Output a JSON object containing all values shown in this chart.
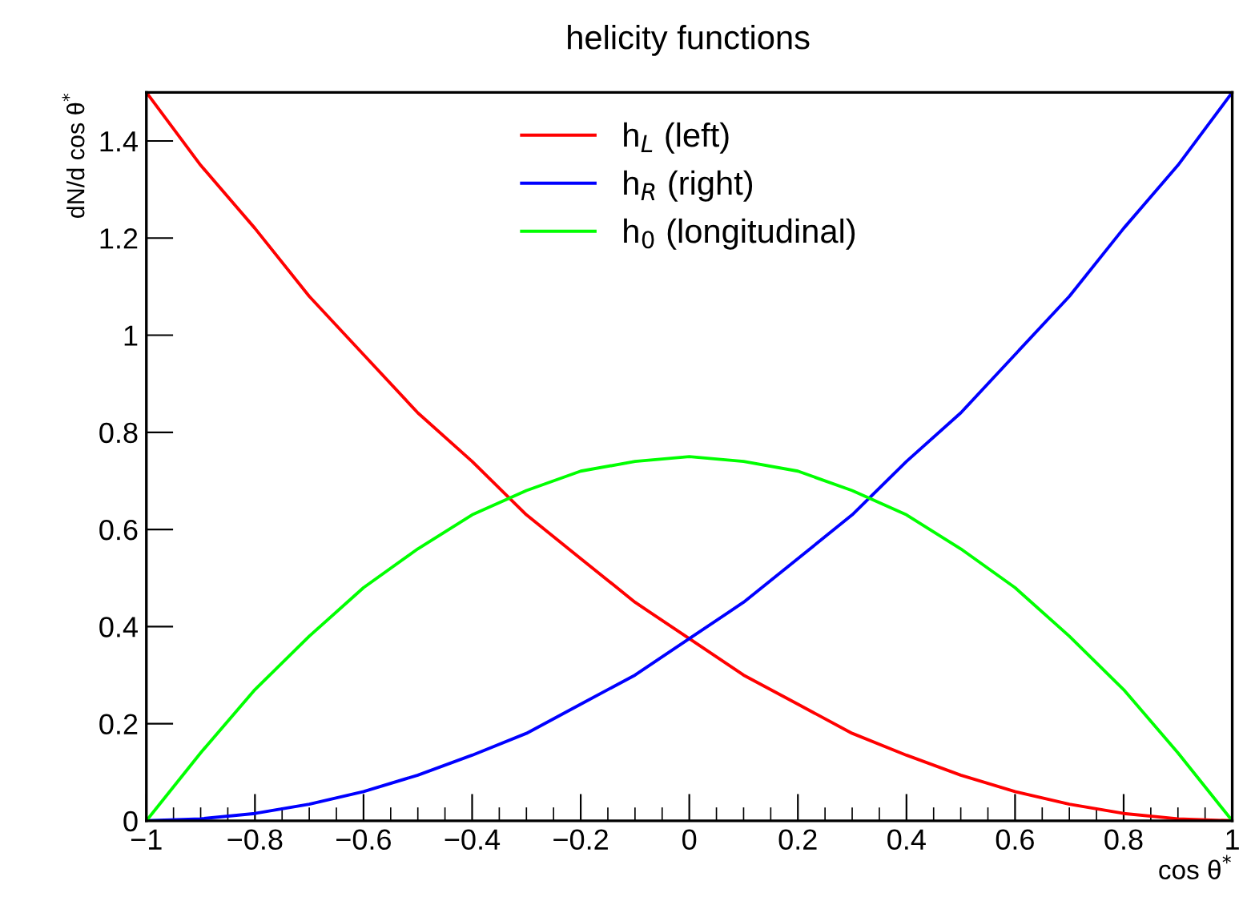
{
  "chart_data": {
    "type": "line",
    "title": "helicity functions",
    "xlabel": "cos θ$^{*}$",
    "ylabel": "dN/d cos θ$^{*}$",
    "x": [
      -1,
      -0.9,
      -0.8,
      -0.7,
      -0.6,
      -0.5,
      -0.4,
      -0.3,
      -0.2,
      -0.1,
      0,
      0.1,
      0.2,
      0.3,
      0.4,
      0.5,
      0.6,
      0.7,
      0.8,
      0.9,
      1
    ],
    "series": [
      {
        "name": "h$_{L}$ (left)",
        "color": "#ff0000",
        "values": [
          1.5,
          1.35,
          1.22,
          1.08,
          0.96,
          0.84,
          0.74,
          0.63,
          0.54,
          0.45,
          0.375,
          0.3,
          0.24,
          0.18,
          0.135,
          0.094,
          0.06,
          0.034,
          0.015,
          0.004,
          0
        ]
      },
      {
        "name": "h$_{R}$ (right)",
        "color": "#0000ff",
        "values": [
          0,
          0.004,
          0.015,
          0.034,
          0.06,
          0.094,
          0.135,
          0.18,
          0.24,
          0.3,
          0.375,
          0.45,
          0.54,
          0.63,
          0.74,
          0.84,
          0.96,
          1.08,
          1.22,
          1.35,
          1.5
        ]
      },
      {
        "name": "h$_{0}$ (longitudinal)",
        "color": "#00ff00",
        "values": [
          0,
          0.14,
          0.27,
          0.38,
          0.48,
          0.56,
          0.63,
          0.68,
          0.72,
          0.74,
          0.75,
          0.74,
          0.72,
          0.68,
          0.63,
          0.56,
          0.48,
          0.38,
          0.27,
          0.14,
          0
        ]
      }
    ],
    "xlim": [
      -1,
      1
    ],
    "ylim": [
      0,
      1.5
    ],
    "xticks": [
      {
        "value": -1,
        "label": "−1"
      },
      {
        "value": -0.8,
        "label": "−0.8"
      },
      {
        "value": -0.6,
        "label": "−0.6"
      },
      {
        "value": -0.4,
        "label": "−0.4"
      },
      {
        "value": -0.2,
        "label": "−0.2"
      },
      0,
      0.2,
      0.4,
      0.6,
      0.8,
      1
    ],
    "yticks": [
      0,
      0.2,
      0.4,
      0.6,
      0.8,
      1,
      1.2,
      1.4
    ],
    "grid": false,
    "legend": "top",
    "marker": "none",
    "line_style": "solid"
  }
}
